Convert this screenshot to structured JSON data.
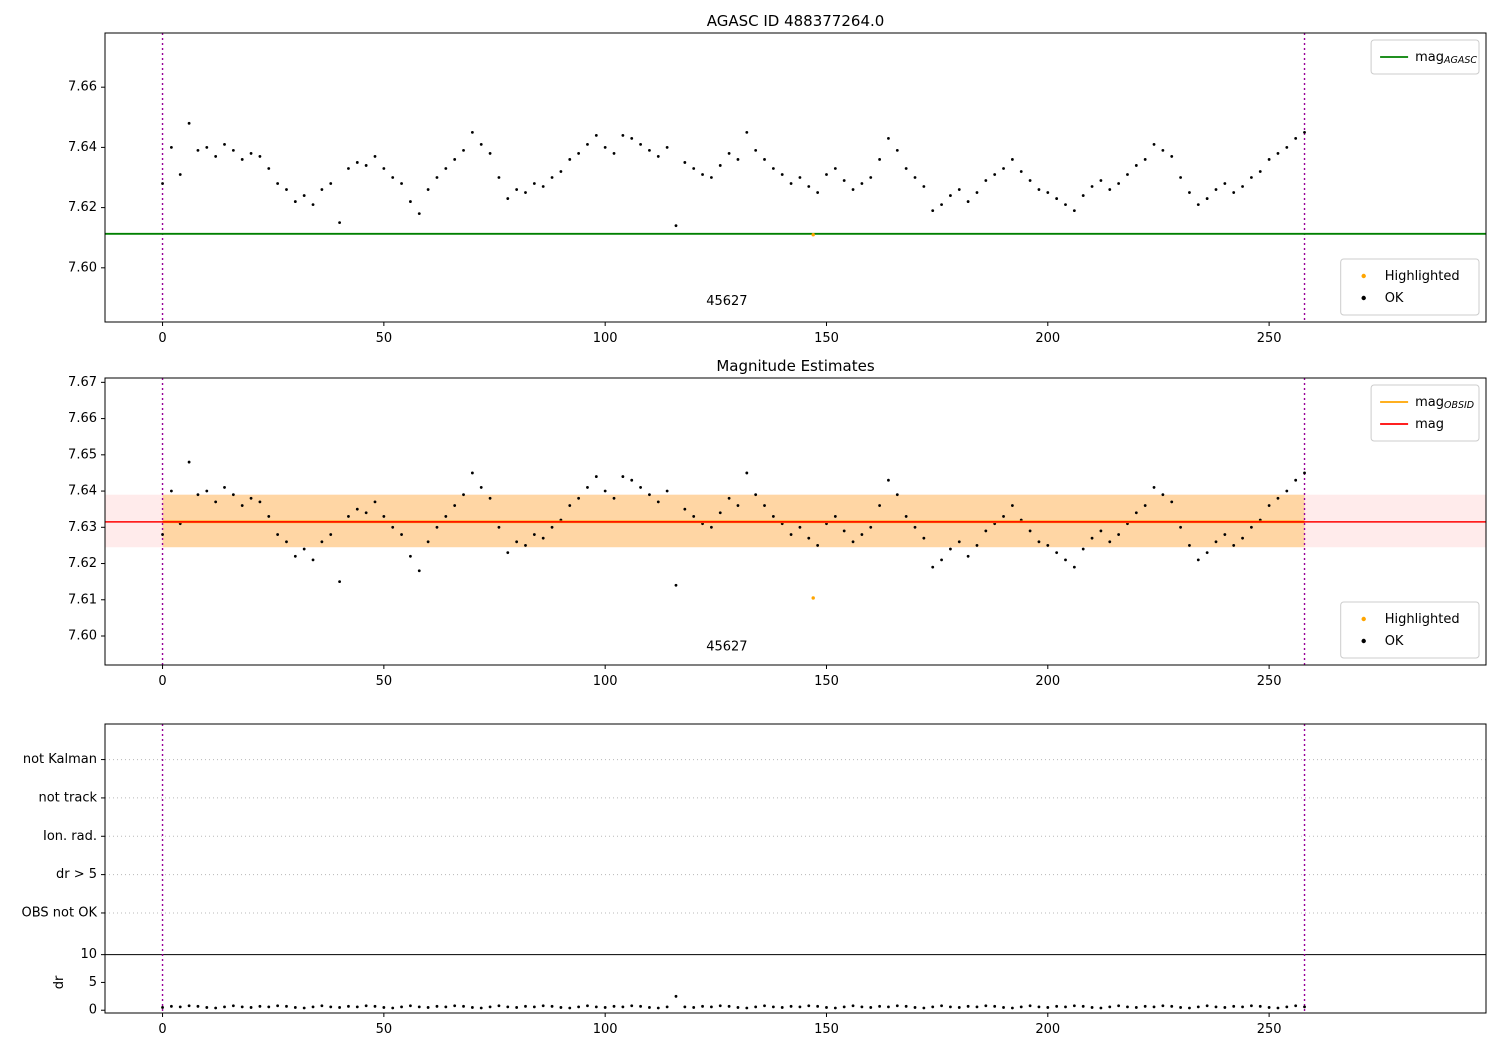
{
  "colors": {
    "scatter": "#000000",
    "highlight": "#ffa500",
    "agasc_line": "#008000",
    "mag_line": "#ff0000",
    "obsid_line": "#ffa500",
    "band": "#ffa500",
    "band_outer": "#ff0000",
    "vline": "#990099",
    "grid": "#b8b8b8",
    "limit_line": "#000000",
    "legend_border": "#cccccc"
  },
  "chart_data": {
    "type": "scatter",
    "obsid_label": "45627",
    "vlines": [
      0,
      258
    ],
    "highlighted": {
      "x": 147,
      "mag_top": 7.611,
      "mag_mid": 7.6105,
      "label": "Highlighted"
    },
    "series": {
      "x": [
        0,
        2,
        4,
        6,
        8,
        10,
        12,
        14,
        16,
        18,
        20,
        22,
        24,
        26,
        28,
        30,
        32,
        34,
        36,
        38,
        40,
        42,
        44,
        46,
        48,
        50,
        52,
        54,
        56,
        58,
        60,
        62,
        64,
        66,
        68,
        70,
        72,
        74,
        76,
        78,
        80,
        82,
        84,
        86,
        88,
        90,
        92,
        94,
        96,
        98,
        100,
        102,
        104,
        106,
        108,
        110,
        112,
        114,
        116,
        118,
        120,
        122,
        124,
        126,
        128,
        130,
        132,
        134,
        136,
        138,
        140,
        142,
        144,
        146,
        148,
        150,
        152,
        154,
        156,
        158,
        160,
        162,
        164,
        166,
        168,
        170,
        172,
        174,
        176,
        178,
        180,
        182,
        184,
        186,
        188,
        190,
        192,
        194,
        196,
        198,
        200,
        202,
        204,
        206,
        208,
        210,
        212,
        214,
        216,
        218,
        220,
        222,
        224,
        226,
        228,
        230,
        232,
        234,
        236,
        238,
        240,
        242,
        244,
        246,
        248,
        250,
        252,
        254,
        256,
        258
      ],
      "mag": [
        7.628,
        7.64,
        7.631,
        7.648,
        7.639,
        7.64,
        7.637,
        7.641,
        7.639,
        7.636,
        7.638,
        7.637,
        7.633,
        7.628,
        7.626,
        7.622,
        7.624,
        7.621,
        7.626,
        7.628,
        7.615,
        7.633,
        7.635,
        7.634,
        7.637,
        7.633,
        7.63,
        7.628,
        7.622,
        7.618,
        7.626,
        7.63,
        7.633,
        7.636,
        7.639,
        7.645,
        7.641,
        7.638,
        7.63,
        7.623,
        7.626,
        7.625,
        7.628,
        7.627,
        7.63,
        7.632,
        7.636,
        7.638,
        7.641,
        7.644,
        7.64,
        7.638,
        7.644,
        7.643,
        7.641,
        7.639,
        7.637,
        7.64,
        7.614,
        7.635,
        7.633,
        7.631,
        7.63,
        7.634,
        7.638,
        7.636,
        7.645,
        7.639,
        7.636,
        7.633,
        7.631,
        7.628,
        7.63,
        7.627,
        7.625,
        7.631,
        7.633,
        7.629,
        7.626,
        7.628,
        7.63,
        7.636,
        7.643,
        7.639,
        7.633,
        7.63,
        7.627,
        7.619,
        7.621,
        7.624,
        7.626,
        7.622,
        7.625,
        7.629,
        7.631,
        7.633,
        7.636,
        7.632,
        7.629,
        7.626,
        7.625,
        7.623,
        7.621,
        7.619,
        7.624,
        7.627,
        7.629,
        7.626,
        7.628,
        7.631,
        7.634,
        7.636,
        7.641,
        7.639,
        7.637,
        7.63,
        7.625,
        7.621,
        7.623,
        7.626,
        7.628,
        7.625,
        7.627,
        7.63,
        7.632,
        7.636,
        7.638,
        7.64,
        7.643,
        7.645
      ],
      "dr": [
        0.5,
        0.7,
        0.6,
        0.8,
        0.7,
        0.5,
        0.4,
        0.6,
        0.8,
        0.6,
        0.5,
        0.7,
        0.6,
        0.8,
        0.7,
        0.5,
        0.4,
        0.6,
        0.8,
        0.6,
        0.5,
        0.7,
        0.6,
        0.8,
        0.7,
        0.5,
        0.4,
        0.6,
        0.8,
        0.6,
        0.5,
        0.7,
        0.6,
        0.8,
        0.7,
        0.5,
        0.4,
        0.6,
        0.8,
        0.6,
        0.5,
        0.7,
        0.6,
        0.8,
        0.7,
        0.5,
        0.4,
        0.6,
        0.8,
        0.6,
        0.5,
        0.7,
        0.6,
        0.8,
        0.7,
        0.5,
        0.4,
        0.6,
        2.5,
        0.6,
        0.5,
        0.7,
        0.6,
        0.8,
        0.7,
        0.5,
        0.4,
        0.6,
        0.8,
        0.6,
        0.5,
        0.7,
        0.6,
        0.8,
        0.7,
        0.5,
        0.4,
        0.6,
        0.8,
        0.6,
        0.5,
        0.7,
        0.6,
        0.8,
        0.7,
        0.5,
        0.4,
        0.6,
        0.8,
        0.6,
        0.5,
        0.7,
        0.6,
        0.8,
        0.7,
        0.5,
        0.4,
        0.6,
        0.8,
        0.6,
        0.5,
        0.7,
        0.6,
        0.8,
        0.7,
        0.5,
        0.4,
        0.6,
        0.8,
        0.6,
        0.5,
        0.7,
        0.6,
        0.8,
        0.7,
        0.5,
        0.4,
        0.6,
        0.8,
        0.6,
        0.5,
        0.7,
        0.6,
        0.8,
        0.7,
        0.5,
        0.4,
        0.6,
        0.8,
        0.6
      ]
    },
    "charts": [
      {
        "title": "AGASC ID 488377264.0",
        "xlim": [
          -13,
          299
        ],
        "ylim": [
          7.582,
          7.678
        ],
        "xticks": [
          0,
          50,
          100,
          150,
          200,
          250
        ],
        "yticks": [
          7.6,
          7.62,
          7.64,
          7.66
        ],
        "ytick_labels": [
          "7.60",
          "7.62",
          "7.64",
          "7.66"
        ],
        "agasc_mag": 7.6113,
        "obsid_pos": {
          "x": 127.5,
          "y": 7.5876
        },
        "legend_top": [
          {
            "type": "line",
            "color": "#008000",
            "label": "mag",
            "sub": "AGASC"
          }
        ],
        "legend_bottom": [
          {
            "type": "dot",
            "color": "#ffa500",
            "label": "Highlighted"
          },
          {
            "type": "dot",
            "color": "#000000",
            "label": "OK"
          }
        ]
      },
      {
        "title": "Magnitude Estimates",
        "xlim": [
          -13,
          299
        ],
        "ylim": [
          7.592,
          7.6712
        ],
        "xticks": [
          0,
          50,
          100,
          150,
          200,
          250
        ],
        "yticks": [
          7.6,
          7.61,
          7.62,
          7.63,
          7.64,
          7.65,
          7.66,
          7.67
        ],
        "ytick_labels": [
          "7.60",
          "7.61",
          "7.62",
          "7.63",
          "7.64",
          "7.65",
          "7.66",
          "7.67"
        ],
        "mag": 7.6315,
        "obsid_mag": 7.6315,
        "band": [
          7.6245,
          7.639
        ],
        "obsid_pos": {
          "x": 127.5,
          "y": 7.596
        },
        "legend_top": [
          {
            "type": "line",
            "color": "#ffa500",
            "label": "mag",
            "sub": "OBSID"
          },
          {
            "type": "line",
            "color": "#ff0000",
            "label": "mag"
          }
        ],
        "legend_bottom": [
          {
            "type": "dot",
            "color": "#ffa500",
            "label": "Highlighted"
          },
          {
            "type": "dot",
            "color": "#000000",
            "label": "OK"
          }
        ]
      },
      {
        "title": "",
        "xlim": [
          -13,
          299
        ],
        "vlim": [
          -0.5,
          51.5
        ],
        "xticks": [
          0,
          50,
          100,
          150,
          200,
          250
        ],
        "categories": [
          {
            "label": "not Kalman",
            "v": 45.1
          },
          {
            "label": "not track",
            "v": 38.2
          },
          {
            "label": "Ion. rad.",
            "v": 31.3
          },
          {
            "label": "dr > 5",
            "v": 24.4
          },
          {
            "label": "OBS not OK",
            "v": 17.5
          }
        ],
        "dr_ticks": [
          10,
          5,
          0
        ],
        "dr_tick_labels": [
          "10",
          "5",
          "0"
        ],
        "dr_limit_line": 10,
        "ylabel": "dr"
      }
    ]
  }
}
